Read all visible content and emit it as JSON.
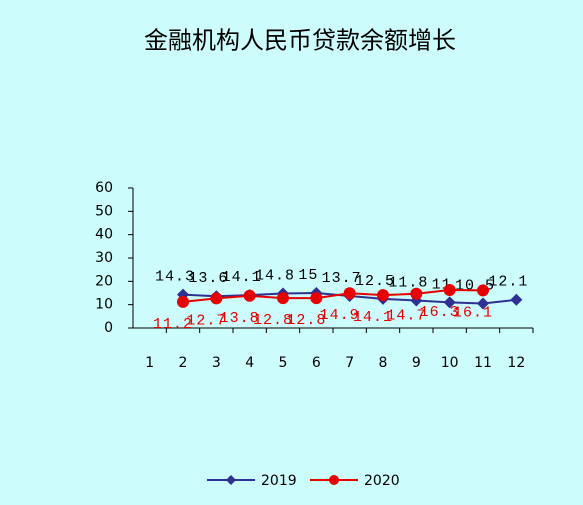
{
  "chart_data": {
    "type": "line",
    "title": "金融机构人民币贷款余额增长",
    "categories": [
      "1",
      "2",
      "3",
      "4",
      "5",
      "6",
      "7",
      "8",
      "9",
      "10",
      "11",
      "12"
    ],
    "series": [
      {
        "name": "2019",
        "color": "#2e3192",
        "marker": "diamond",
        "values": [
          null,
          14.3,
          13.6,
          14.1,
          14.8,
          15,
          13.7,
          12.5,
          11.8,
          11,
          10.5,
          12.1
        ]
      },
      {
        "name": "2020",
        "color": "#e60000",
        "marker": "circle",
        "values": [
          null,
          11.2,
          12.7,
          13.8,
          12.8,
          12.8,
          14.9,
          14.1,
          14.7,
          16.3,
          16.1,
          null
        ]
      }
    ],
    "ylim": [
      0,
      60
    ],
    "yticks": [
      0,
      10,
      20,
      30,
      40,
      50,
      60
    ],
    "grid": false,
    "legend": "bottom"
  }
}
